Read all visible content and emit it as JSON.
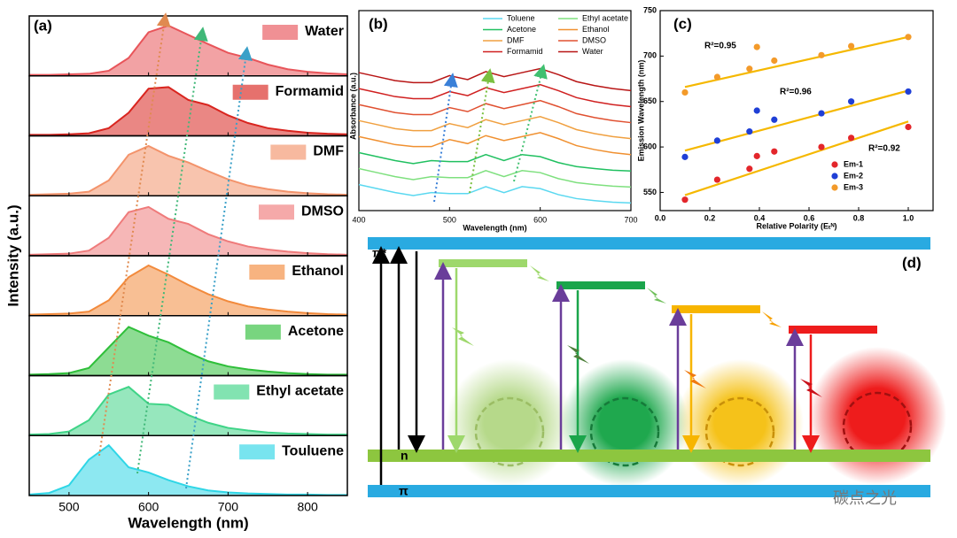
{
  "chart_data": [
    {
      "type": "area",
      "title": "(a)",
      "x_label": "Wavelength (nm)",
      "y_label": "Intensity (a.u.)",
      "x": [
        450,
        475,
        500,
        525,
        550,
        575,
        600,
        625,
        650,
        675,
        700,
        725,
        750,
        775,
        800,
        825,
        850
      ],
      "xlim": [
        450,
        850
      ],
      "xticks": [
        500,
        600,
        700,
        800
      ],
      "ylim": [
        0,
        1.1
      ],
      "series": [
        {
          "name": "Water",
          "color": "#e8555a",
          "values": [
            0.02,
            0.02,
            0.03,
            0.04,
            0.1,
            0.35,
            0.85,
            0.98,
            0.8,
            0.62,
            0.45,
            0.35,
            0.22,
            0.13,
            0.08,
            0.05,
            0.03
          ]
        },
        {
          "name": "Formamid",
          "color": "#d9251f",
          "values": [
            0.02,
            0.02,
            0.03,
            0.05,
            0.15,
            0.45,
            0.92,
            0.95,
            0.7,
            0.6,
            0.4,
            0.25,
            0.15,
            0.1,
            0.06,
            0.04,
            0.03
          ]
        },
        {
          "name": "DMF",
          "color": "#f3936b",
          "values": [
            0.02,
            0.03,
            0.04,
            0.08,
            0.3,
            0.8,
            0.97,
            0.78,
            0.65,
            0.48,
            0.32,
            0.2,
            0.13,
            0.08,
            0.05,
            0.03,
            0.02
          ]
        },
        {
          "name": "DMSO",
          "color": "#ef7b7b",
          "values": [
            0.02,
            0.03,
            0.04,
            0.1,
            0.35,
            0.85,
            0.95,
            0.72,
            0.62,
            0.42,
            0.28,
            0.18,
            0.12,
            0.08,
            0.05,
            0.03,
            0.02
          ]
        },
        {
          "name": "Ethanol",
          "color": "#f28a3c",
          "values": [
            0.02,
            0.03,
            0.04,
            0.08,
            0.3,
            0.75,
            0.98,
            0.8,
            0.6,
            0.42,
            0.28,
            0.18,
            0.12,
            0.08,
            0.05,
            0.03,
            0.02
          ]
        },
        {
          "name": "Acetone",
          "color": "#2fbf3a",
          "values": [
            0.02,
            0.03,
            0.05,
            0.15,
            0.55,
            0.95,
            0.78,
            0.65,
            0.45,
            0.28,
            0.18,
            0.12,
            0.08,
            0.05,
            0.03,
            0.02,
            0.02
          ]
        },
        {
          "name": "Ethyl acetate",
          "color": "#3fd487",
          "values": [
            0.02,
            0.03,
            0.08,
            0.3,
            0.8,
            0.95,
            0.62,
            0.6,
            0.4,
            0.25,
            0.15,
            0.1,
            0.06,
            0.04,
            0.03,
            0.02,
            0.02
          ]
        },
        {
          "name": "Touluene",
          "color": "#2fd6e6",
          "values": [
            0.02,
            0.05,
            0.2,
            0.7,
            0.98,
            0.55,
            0.45,
            0.3,
            0.18,
            0.1,
            0.06,
            0.04,
            0.03,
            0.02,
            0.02,
            0.01,
            0.01
          ]
        }
      ]
    },
    {
      "type": "line",
      "title": "(b)",
      "x_label": "Wavelength (nm)",
      "y_label": "Absorbance (a.u.)",
      "x": [
        400,
        420,
        440,
        460,
        480,
        500,
        520,
        540,
        560,
        580,
        600,
        620,
        640,
        660,
        680,
        700
      ],
      "xlim": [
        400,
        700
      ],
      "xticks": [
        400,
        500,
        600,
        700
      ],
      "ylim": [
        0,
        10
      ],
      "series": [
        {
          "name": "Toluene",
          "color": "#5ad8f0",
          "values": [
            1.3,
            1.1,
            0.9,
            0.75,
            0.9,
            0.85,
            0.85,
            1.2,
            0.9,
            1.2,
            1.1,
            0.8,
            0.6,
            0.5,
            0.42,
            0.38
          ]
        },
        {
          "name": "Ethyl acetate",
          "color": "#7ee07e",
          "values": [
            2.1,
            1.9,
            1.7,
            1.55,
            1.7,
            1.65,
            1.65,
            2.0,
            1.7,
            2.0,
            1.9,
            1.6,
            1.4,
            1.3,
            1.22,
            1.18
          ]
        },
        {
          "name": "Acetone",
          "color": "#20c060",
          "values": [
            2.9,
            2.7,
            2.5,
            2.35,
            2.5,
            2.45,
            2.45,
            2.8,
            2.5,
            2.8,
            2.7,
            2.4,
            2.2,
            2.1,
            2.02,
            1.98
          ]
        },
        {
          "name": "Ethanol",
          "color": "#f09030",
          "values": [
            3.7,
            3.5,
            3.3,
            3.2,
            3.2,
            3.55,
            3.35,
            3.75,
            3.5,
            3.7,
            3.9,
            3.6,
            3.25,
            3.05,
            2.9,
            2.8
          ]
        },
        {
          "name": "DMF",
          "color": "#f0a040",
          "values": [
            4.5,
            4.3,
            4.1,
            4.0,
            4.0,
            4.35,
            4.15,
            4.55,
            4.3,
            4.5,
            4.7,
            4.4,
            4.05,
            3.85,
            3.7,
            3.6
          ]
        },
        {
          "name": "DMSO",
          "color": "#e05030",
          "values": [
            5.3,
            5.1,
            4.9,
            4.8,
            4.8,
            5.15,
            4.95,
            5.35,
            5.1,
            5.3,
            5.5,
            5.2,
            4.85,
            4.65,
            4.5,
            4.4
          ]
        },
        {
          "name": "Formamid",
          "color": "#d02020",
          "values": [
            6.1,
            5.9,
            5.7,
            5.6,
            5.6,
            5.95,
            5.75,
            6.15,
            5.9,
            6.1,
            6.3,
            6.0,
            5.65,
            5.45,
            5.3,
            5.2
          ]
        },
        {
          "name": "Water",
          "color": "#b81515",
          "values": [
            6.9,
            6.7,
            6.5,
            6.4,
            6.4,
            6.75,
            6.55,
            6.95,
            6.7,
            6.9,
            7.1,
            6.8,
            6.45,
            6.25,
            6.1,
            6.0
          ]
        }
      ]
    },
    {
      "type": "scatter",
      "title": "(c)",
      "x_label": "Relative Polarity (Eₜᴺ)",
      "y_label": "Emission Wavelength (nm)",
      "x": [
        0.1,
        0.23,
        0.36,
        0.39,
        0.46,
        0.65,
        0.77,
        1.0
      ],
      "xlim": [
        0,
        1.1
      ],
      "xticks": [
        {
          "value": 0,
          "label": "0.0"
        },
        0.2,
        0.4,
        0.6,
        0.8,
        {
          "value": 1,
          "label": "1.0"
        }
      ],
      "ylim": [
        530,
        750
      ],
      "yticks": [
        550,
        600,
        650,
        700,
        750
      ],
      "fit_x": [
        0.1,
        1.0
      ],
      "fit_color": "#f5b800",
      "annotations": [
        "R²=0.95",
        "R²=0.96",
        "R²=0.92"
      ],
      "series": [
        {
          "name": "Em-1",
          "color": "#e3262b",
          "values": [
            542,
            564,
            576,
            590,
            595,
            600,
            610,
            622
          ],
          "fit": [
            547,
            628
          ]
        },
        {
          "name": "Em-2",
          "color": "#1f3fd6",
          "values": [
            589,
            607,
            617,
            640,
            630,
            637,
            650,
            661
          ],
          "fit": [
            596,
            662
          ]
        },
        {
          "name": "Em-3",
          "color": "#f39a2a",
          "values": [
            660,
            677,
            686,
            710,
            695,
            701,
            711,
            721
          ],
          "fit": [
            666,
            721
          ]
        }
      ]
    }
  ],
  "diagram": {
    "label": "(d)",
    "pi_star": "π*",
    "n": "n",
    "pi": "π",
    "watermark": "碳点之光"
  }
}
